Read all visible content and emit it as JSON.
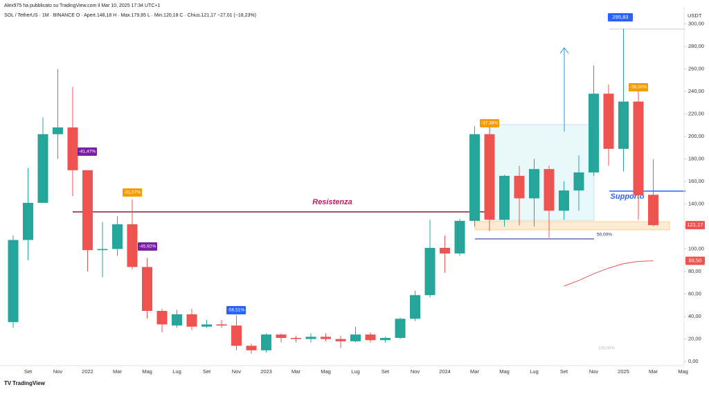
{
  "chart_data": {
    "type": "candlestick",
    "title": "SOL / TetherUS · 1M · BINANCE  O · Apert.148,18  H · Max.179,85  L · Min.120,18  C · Chius.121,17  −27,01 (−18,23%)",
    "subtitle": "Alex975 ha pubblicato su TradingView.com il Mar 10, 2025 17:34 UTC+1",
    "y_axis_label": "USDT",
    "categories": [
      null,
      "Set",
      null,
      "Nov",
      null,
      "2022",
      null,
      "Mar",
      null,
      "Mag",
      null,
      "Lug",
      null,
      "Set",
      null,
      "Nov",
      null,
      "2023",
      null,
      "Mar",
      null,
      "Mag",
      null,
      "Lug",
      null,
      "Set",
      null,
      "Nov",
      null,
      "2024",
      null,
      "Mar",
      null,
      "Mag",
      null,
      "Lug",
      null,
      "Set",
      null,
      "Nov",
      null,
      "2025",
      null,
      "Mar",
      null,
      "Mag"
    ],
    "open": [
      35,
      108,
      141,
      202,
      208,
      170,
      99,
      100,
      122,
      84,
      45,
      32,
      42,
      31,
      33,
      32,
      14,
      10,
      24,
      21,
      20,
      22,
      20,
      18,
      24,
      19,
      21,
      38,
      59,
      101,
      96,
      125,
      202,
      126,
      165,
      145,
      171,
      134,
      152,
      168,
      238,
      189,
      231,
      148.18,
      null,
      null
    ],
    "high": [
      112,
      172,
      217,
      260,
      244,
      170,
      124,
      129,
      144,
      92,
      47,
      46,
      47,
      37,
      37,
      41,
      16,
      25,
      25,
      23,
      25,
      25,
      23,
      31,
      26,
      22,
      39,
      63,
      126,
      112,
      127,
      209,
      210,
      166,
      174,
      180,
      174,
      160,
      183,
      263,
      246,
      295.83,
      241,
      179.85,
      null,
      null
    ],
    "low": [
      30,
      90,
      141,
      180,
      147,
      80,
      75,
      94,
      82,
      38,
      26,
      30,
      28,
      30,
      30,
      10,
      7,
      8,
      17,
      17,
      17,
      18,
      12,
      17,
      17,
      17,
      20,
      36,
      57,
      79,
      94,
      120,
      116,
      120,
      121,
      120,
      110,
      126,
      134,
      165,
      174,
      169,
      126,
      120.18,
      null,
      null
    ],
    "close": [
      108,
      141,
      202,
      208,
      170,
      99,
      100,
      122,
      84,
      45,
      33,
      42,
      31,
      33,
      32,
      14,
      10,
      24,
      21,
      20,
      22,
      20,
      18,
      24,
      19,
      21,
      38,
      59,
      101,
      96,
      125,
      202,
      126,
      165,
      145,
      171,
      134,
      152,
      168,
      238,
      189,
      231,
      148,
      121.17,
      null,
      null
    ],
    "up_color": "#26a69a",
    "down_color": "#ef5350",
    "peak_label": "295,83",
    "last_close_label": "121,17",
    "ma": {
      "color": "#ef5350",
      "value_label": "89,50",
      "values": [
        null,
        null,
        null,
        null,
        null,
        null,
        null,
        null,
        null,
        null,
        null,
        null,
        null,
        null,
        null,
        null,
        null,
        null,
        null,
        null,
        null,
        null,
        null,
        null,
        null,
        null,
        null,
        null,
        null,
        null,
        null,
        null,
        null,
        null,
        null,
        null,
        null,
        67,
        72,
        78,
        83,
        87,
        89,
        89.5,
        null,
        null
      ]
    },
    "ylim": [
      -11,
      312
    ],
    "yticks": [
      {
        "value": 0,
        "label": "0,00"
      },
      {
        "value": 20,
        "label": "20,00"
      },
      {
        "value": 40,
        "label": "40,00"
      },
      {
        "value": 60,
        "label": "60,00"
      },
      {
        "value": 80,
        "label": "80,00"
      },
      {
        "value": 100,
        "label": "100,00"
      },
      {
        "value": 120,
        "label": "120,00"
      },
      {
        "value": 140,
        "label": "140,00"
      },
      {
        "value": 160,
        "label": "160,00"
      },
      {
        "value": 180,
        "label": "180,00"
      },
      {
        "value": 200,
        "label": "200,00"
      },
      {
        "value": 220,
        "label": "220,00"
      },
      {
        "value": 240,
        "label": "240,00"
      },
      {
        "value": 260,
        "label": "260,00"
      },
      {
        "value": 280,
        "label": "280,00"
      },
      {
        "value": 300,
        "label": "300,00"
      }
    ],
    "grid": false,
    "annotations": [
      {
        "text": "-41,47%",
        "color": "#7b1fa2"
      },
      {
        "text": "-31,07%",
        "color": "#f59c00"
      },
      {
        "text": "-45,92%",
        "color": "#7b1fa2"
      },
      {
        "text": "-56,51%",
        "color": "#2962ff"
      },
      {
        "text": "-37,38%",
        "color": "#f59c00"
      },
      {
        "text": "-36,00%",
        "color": "#f59c00"
      }
    ],
    "resistance_label": "Resistenza",
    "support_label": "Supporto",
    "fib_label": "50,00%",
    "fib_label_2": "100,00%",
    "brand": "TradingView"
  }
}
